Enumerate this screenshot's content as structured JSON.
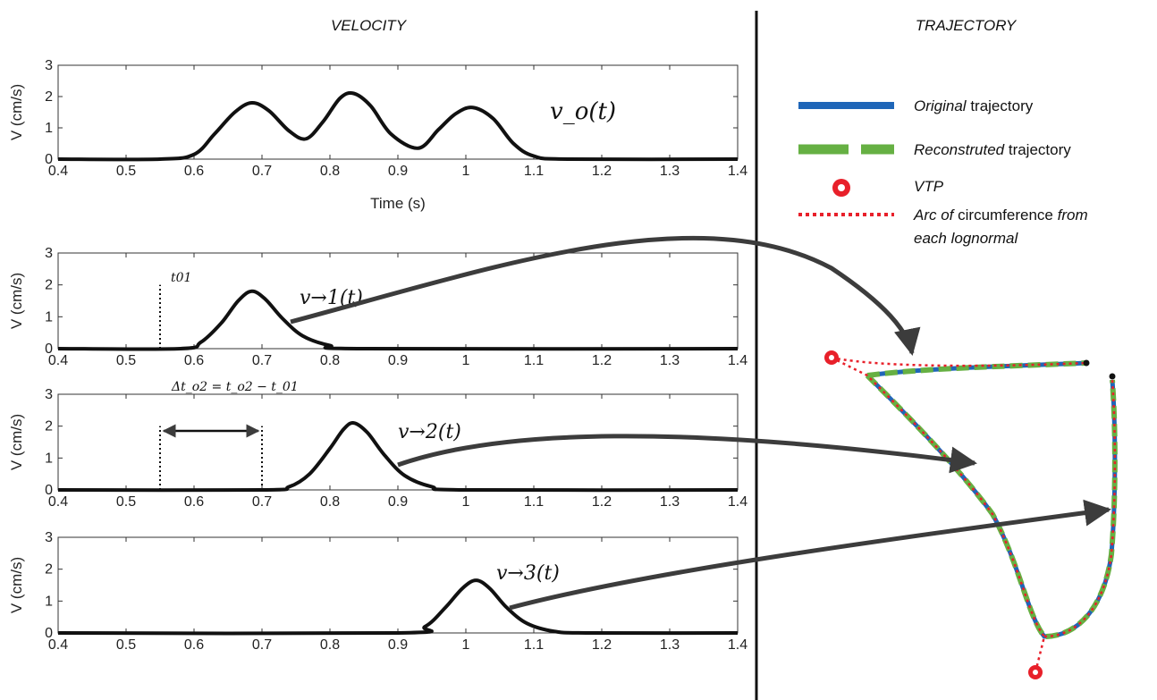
{
  "titles": {
    "velocity": "VELOCITY",
    "trajectory": "TRAJECTORY"
  },
  "chart_data": [
    {
      "type": "line",
      "id": "v0",
      "ylabel": "V (cm/s)",
      "xlabel": "Time (s)",
      "xlim": [
        0.4,
        1.4
      ],
      "ylim": [
        0,
        3
      ],
      "xticks": [
        "0.4",
        "0.5",
        "0.6",
        "0.7",
        "0.8",
        "0.9",
        "1",
        "1.1",
        "1.2",
        "1.3",
        "1.4"
      ],
      "yticks": [
        "0",
        "1",
        "2",
        "3"
      ],
      "curve_label": "v_o(t)",
      "x": [
        0.4,
        0.55,
        0.6,
        0.63,
        0.66,
        0.685,
        0.71,
        0.74,
        0.765,
        0.79,
        0.815,
        0.835,
        0.86,
        0.89,
        0.93,
        0.96,
        0.985,
        1.01,
        1.04,
        1.07,
        1.1,
        1.15,
        1.4
      ],
      "series": [
        {
          "values": [
            0,
            0,
            0.15,
            0.8,
            1.5,
            1.8,
            1.55,
            0.9,
            0.65,
            1.2,
            1.95,
            2.1,
            1.7,
            0.8,
            0.35,
            0.95,
            1.45,
            1.65,
            1.3,
            0.5,
            0.1,
            0,
            0
          ]
        }
      ]
    },
    {
      "type": "line",
      "id": "v1",
      "ylabel": "V (cm/s)",
      "xlim": [
        0.4,
        1.4
      ],
      "ylim": [
        0,
        3
      ],
      "xticks": [
        "0.4",
        "0.5",
        "0.6",
        "0.7",
        "0.8",
        "0.9",
        "1",
        "1.1",
        "1.2",
        "1.3",
        "1.4"
      ],
      "yticks": [
        "0",
        "1",
        "2",
        "3"
      ],
      "curve_label": "v→1(t)",
      "onset_marker": {
        "x": 0.55,
        "label": "t01"
      },
      "x": [
        0.4,
        0.58,
        0.61,
        0.64,
        0.665,
        0.685,
        0.705,
        0.73,
        0.76,
        0.8,
        0.85,
        1.4
      ],
      "series": [
        {
          "values": [
            0,
            0,
            0.2,
            0.8,
            1.5,
            1.8,
            1.55,
            0.95,
            0.4,
            0.1,
            0,
            0
          ]
        }
      ]
    },
    {
      "type": "line",
      "id": "v2",
      "ylabel": "V (cm/s)",
      "xlim": [
        0.4,
        1.4
      ],
      "ylim": [
        0,
        3
      ],
      "xticks": [
        "0.4",
        "0.5",
        "0.6",
        "0.7",
        "0.8",
        "0.9",
        "1",
        "1.1",
        "1.2",
        "1.3",
        "1.4"
      ],
      "yticks": [
        "0",
        "1",
        "2",
        "3"
      ],
      "curve_label": "v→2(t)",
      "delay_annotation": "Δt_o2 = t_o2 − t_01",
      "delay_markers": [
        0.55,
        0.7
      ],
      "x": [
        0.4,
        0.7,
        0.74,
        0.77,
        0.8,
        0.82,
        0.835,
        0.855,
        0.88,
        0.91,
        0.95,
        1.0,
        1.4
      ],
      "series": [
        {
          "values": [
            0,
            0,
            0.1,
            0.5,
            1.3,
            1.9,
            2.1,
            1.8,
            1.1,
            0.45,
            0.1,
            0,
            0
          ]
        }
      ]
    },
    {
      "type": "line",
      "id": "v3",
      "ylabel": "V (cm/s)",
      "xlim": [
        0.4,
        1.4
      ],
      "ylim": [
        0,
        3
      ],
      "xticks": [
        "0.4",
        "0.5",
        "0.6",
        "0.7",
        "0.8",
        "0.9",
        "1",
        "1.1",
        "1.2",
        "1.3",
        "1.4"
      ],
      "yticks": [
        "0",
        "1",
        "2",
        "3"
      ],
      "curve_label": "v→3(t)",
      "x": [
        0.4,
        0.9,
        0.94,
        0.97,
        0.995,
        1.015,
        1.035,
        1.06,
        1.09,
        1.13,
        1.18,
        1.4
      ],
      "series": [
        {
          "values": [
            0,
            0,
            0.2,
            0.8,
            1.4,
            1.65,
            1.4,
            0.8,
            0.3,
            0.05,
            0,
            0
          ]
        }
      ]
    }
  ],
  "legend": [
    {
      "name": "original",
      "italic": "Original",
      "rest": " trajectory",
      "color": "#1f66b8",
      "style": "solid"
    },
    {
      "name": "reconstructed",
      "italic": "Reconstruted",
      "rest": " trajectory",
      "color": "#66b043",
      "style": "dashed"
    },
    {
      "name": "vtp",
      "italic": "VTP",
      "rest": "",
      "color": "#e8202a",
      "style": "marker"
    },
    {
      "name": "arc",
      "italic": "Arc of",
      "rest": " circumference ",
      "italic2": "from",
      "line2": "each lognormal",
      "color": "#e8202a",
      "style": "dotted"
    }
  ],
  "colors": {
    "curve": "#111111",
    "arrow": "#3c3c3c",
    "original": "#1f66b8",
    "reconstructed": "#66b043",
    "vtp": "#e8202a"
  }
}
